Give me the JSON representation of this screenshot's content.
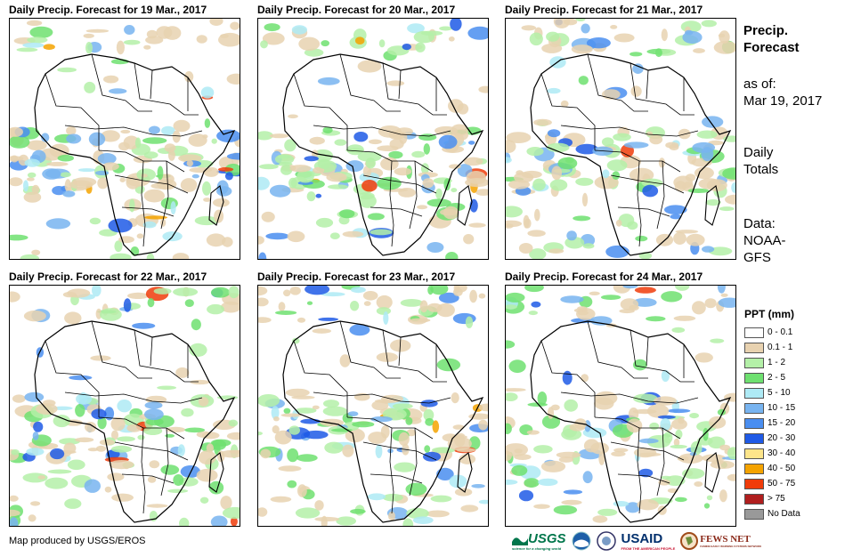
{
  "panels": [
    {
      "title": "Daily Precip. Forecast for 19 Mar., 2017"
    },
    {
      "title": "Daily Precip. Forecast for 20 Mar., 2017"
    },
    {
      "title": "Daily Precip. Forecast for 21 Mar., 2017"
    },
    {
      "title": "Daily Precip. Forecast for 22 Mar., 2017"
    },
    {
      "title": "Daily Precip. Forecast for 23 Mar., 2017"
    },
    {
      "title": "Daily Precip. Forecast for 24 Mar., 2017"
    }
  ],
  "sidebar": {
    "title_line1": "Precip.",
    "title_line2": "Forecast",
    "asof_label": "as of:",
    "asof_date": "Mar 19, 2017",
    "totals_line1": "Daily",
    "totals_line2": "Totals",
    "data_line1": "Data:",
    "data_line2": "NOAA-",
    "data_line3": "GFS"
  },
  "legend": {
    "title": "PPT (mm)",
    "items": [
      {
        "label": "0 - 0.1",
        "color": "#ffffff"
      },
      {
        "label": "0.1 - 1",
        "color": "#e8d2b0"
      },
      {
        "label": "1 - 2",
        "color": "#b4f0a8"
      },
      {
        "label": "2 - 5",
        "color": "#6ee070"
      },
      {
        "label": "5 - 10",
        "color": "#aeeaf5"
      },
      {
        "label": "10 - 15",
        "color": "#78b4f0"
      },
      {
        "label": "15 - 20",
        "color": "#4a8ef0"
      },
      {
        "label": "20 - 30",
        "color": "#1f5ae6"
      },
      {
        "label": "30 - 40",
        "color": "#fde58a"
      },
      {
        "label": "40 - 50",
        "color": "#f4a300"
      },
      {
        "label": "50 - 75",
        "color": "#f03c0a"
      },
      {
        "label": "> 75",
        "color": "#b01e1e"
      },
      {
        "label": "No Data",
        "color": "#999999"
      }
    ]
  },
  "credit": "Map produced by USGS/EROS",
  "logos": {
    "usgs": "USGS",
    "usgs_tagline": "science for a changing world",
    "usaid": "USAID",
    "usaid_tagline": "FROM THE AMERICAN PEOPLE",
    "fewsnet": "FEWS NET",
    "fewsnet_tagline": "FAMINE EARLY WARNING SYSTEMS NETWORK"
  }
}
